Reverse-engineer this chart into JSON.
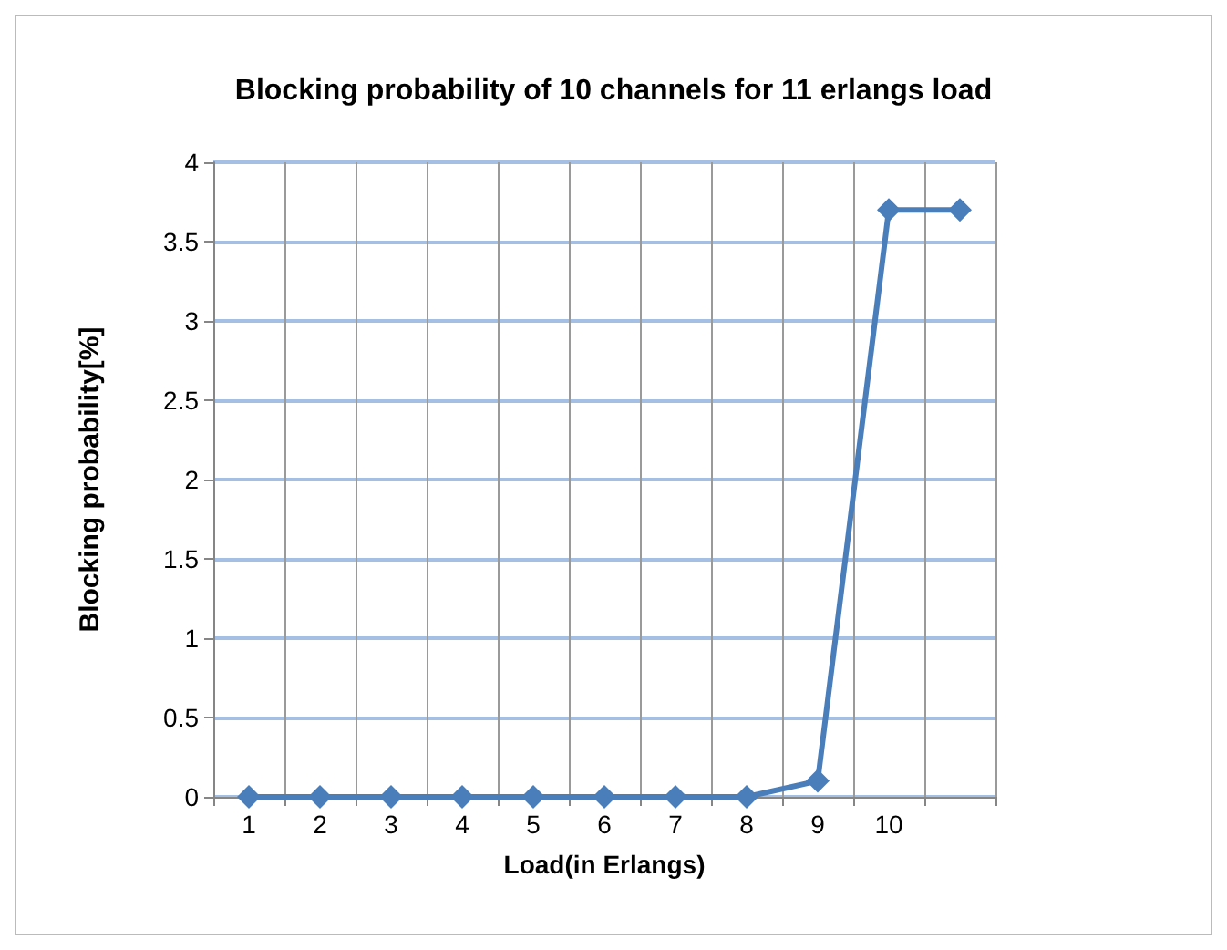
{
  "chart_data": {
    "type": "line",
    "title": "Blocking probability of 10 channels for 11 erlangs load",
    "xlabel": "Load(in Erlangs)",
    "ylabel": "Blocking probability[%]",
    "categories": [
      "1",
      "2",
      "3",
      "4",
      "5",
      "6",
      "7",
      "8",
      "9",
      "10",
      null
    ],
    "series": [
      {
        "color": "#4a7ebb",
        "values": [
          0,
          0,
          0,
          0,
          0,
          0,
          0,
          0,
          0.1,
          3.7,
          3.7
        ]
      }
    ],
    "ylim": [
      0,
      4
    ],
    "yticks": [
      0,
      0.5,
      1,
      1.5,
      2,
      2.5,
      3,
      3.5,
      4
    ],
    "grid": true,
    "marker": "diamond",
    "line_style": "solid"
  }
}
